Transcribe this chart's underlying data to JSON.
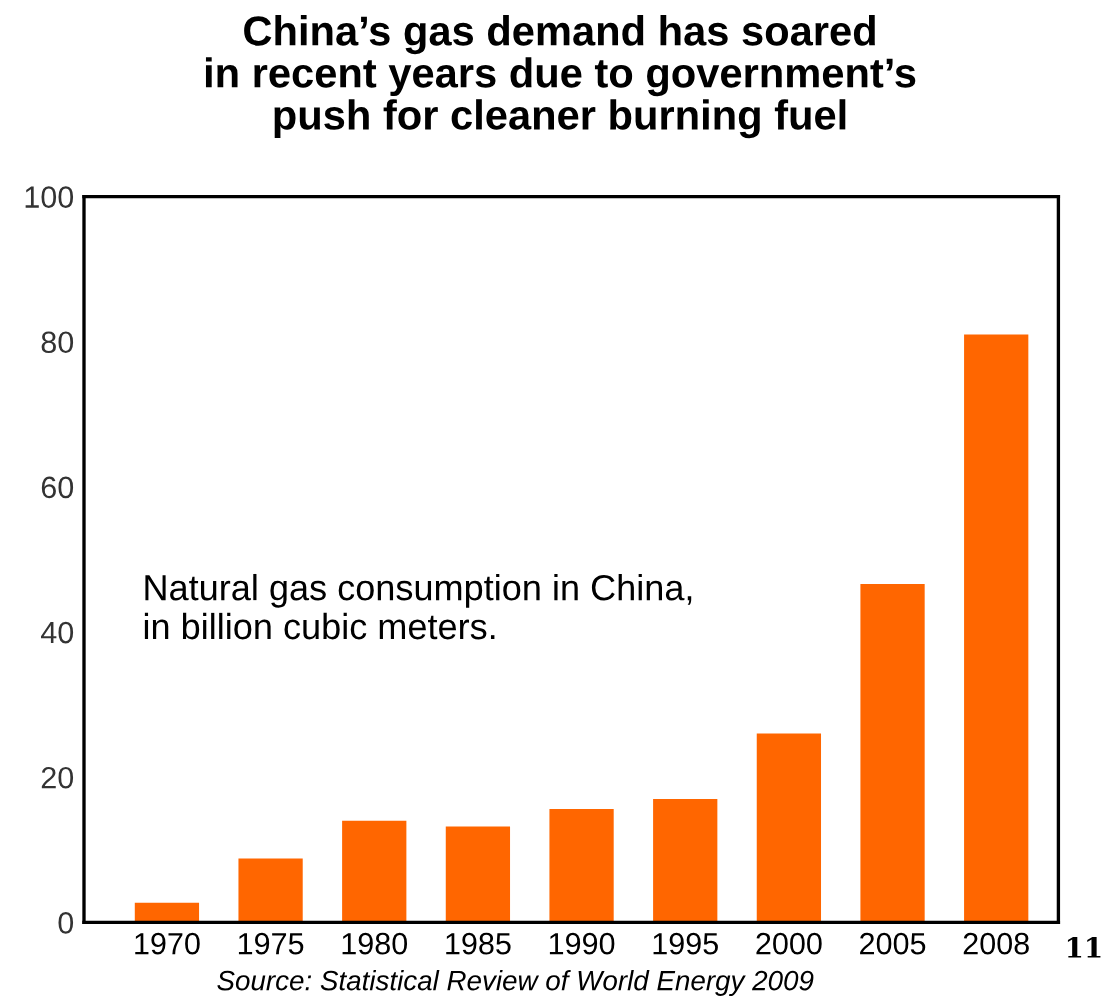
{
  "chart_data": {
    "type": "bar",
    "title": "China’s gas demand has soared\nin recent years due to government’s\npush for cleaner burning fuel",
    "categories": [
      "1970",
      "1975",
      "1980",
      "1985",
      "1990",
      "1995",
      "2000",
      "2005",
      "2008"
    ],
    "values": [
      2.7,
      8.8,
      14,
      13.2,
      15.6,
      17,
      26,
      46.6,
      81
    ],
    "color": "#ff6600",
    "ylim": [
      0,
      100
    ],
    "yticks": [
      0,
      20,
      40,
      60,
      80,
      100
    ],
    "grid": false,
    "annotations": [
      "Natural gas consumption in China,\nin billion cubic meters.",
      "Source: Statistical Review of World Energy 2009",
      "11"
    ]
  }
}
